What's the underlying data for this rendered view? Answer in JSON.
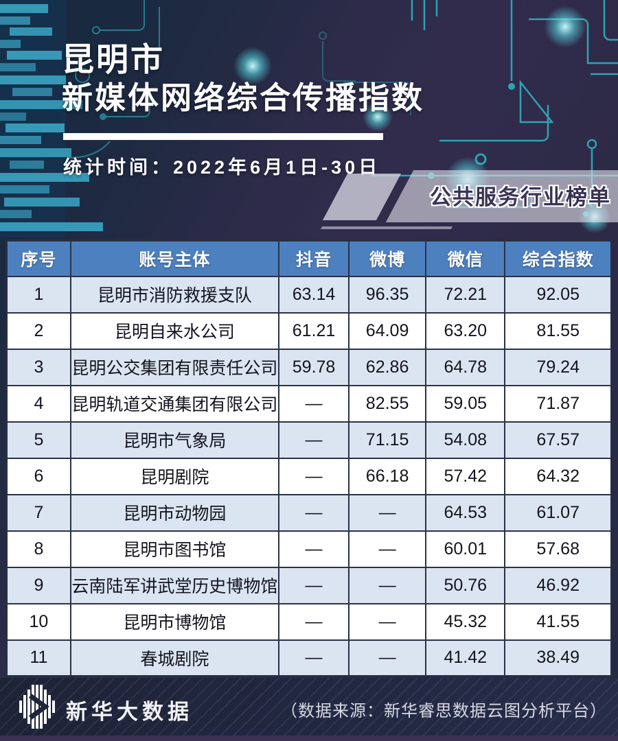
{
  "header": {
    "title_line1": "昆明市",
    "title_line2": "新媒体网络综合传播指数",
    "stats_time": "统计时间：2022年6月1日-30日",
    "badge": "公共服务行业榜单"
  },
  "table": {
    "columns": [
      "序号",
      "账号主体",
      "抖音",
      "微博",
      "微信",
      "综合指数"
    ],
    "rows": [
      [
        "1",
        "昆明市消防救援支队",
        "63.14",
        "96.35",
        "72.21",
        "92.05"
      ],
      [
        "2",
        "昆明自来水公司",
        "61.21",
        "64.09",
        "63.20",
        "81.55"
      ],
      [
        "3",
        "昆明公交集团有限责任公司",
        "59.78",
        "62.86",
        "64.78",
        "79.24"
      ],
      [
        "4",
        "昆明轨道交通集团有限公司",
        "—",
        "82.55",
        "59.05",
        "71.87"
      ],
      [
        "5",
        "昆明市气象局",
        "—",
        "71.15",
        "54.08",
        "67.57"
      ],
      [
        "6",
        "昆明剧院",
        "—",
        "66.18",
        "57.42",
        "64.32"
      ],
      [
        "7",
        "昆明市动物园",
        "—",
        "—",
        "64.53",
        "61.07"
      ],
      [
        "8",
        "昆明市图书馆",
        "—",
        "—",
        "60.01",
        "57.68"
      ],
      [
        "9",
        "云南陆军讲武堂历史博物馆",
        "—",
        "—",
        "50.76",
        "46.92"
      ],
      [
        "10",
        "昆明市博物馆",
        "—",
        "—",
        "45.32",
        "41.55"
      ],
      [
        "11",
        "春城剧院",
        "—",
        "—",
        "41.42",
        "38.49"
      ]
    ]
  },
  "footer": {
    "brand": "新华大数据",
    "source": "（数据来源：新华睿思数据云图分析平台）"
  },
  "colors": {
    "teal": "#2fc1cd",
    "header_blue": "#4d80bf",
    "row_alt": "#dbe5f1",
    "grid_border": "#2b3246",
    "badge_text": "#3a3354",
    "footer_bg": "#1f2439",
    "bottom_strip": "#3c3152"
  },
  "chart_data": {
    "type": "table",
    "title": "昆明市新媒体网络综合传播指数",
    "subtitle": "公共服务行业榜单",
    "period": "统计时间：2022年6月1日-30日",
    "columns": [
      "序号",
      "账号主体",
      "抖音",
      "微博",
      "微信",
      "综合指数"
    ],
    "rows": [
      {
        "rank": 1,
        "account": "昆明市消防救援支队",
        "douyin": 63.14,
        "weibo": 96.35,
        "wechat": 72.21,
        "index": 92.05
      },
      {
        "rank": 2,
        "account": "昆明自来水公司",
        "douyin": 61.21,
        "weibo": 64.09,
        "wechat": 63.2,
        "index": 81.55
      },
      {
        "rank": 3,
        "account": "昆明公交集团有限责任公司",
        "douyin": 59.78,
        "weibo": 62.86,
        "wechat": 64.78,
        "index": 79.24
      },
      {
        "rank": 4,
        "account": "昆明轨道交通集团有限公司",
        "douyin": null,
        "weibo": 82.55,
        "wechat": 59.05,
        "index": 71.87
      },
      {
        "rank": 5,
        "account": "昆明市气象局",
        "douyin": null,
        "weibo": 71.15,
        "wechat": 54.08,
        "index": 67.57
      },
      {
        "rank": 6,
        "account": "昆明剧院",
        "douyin": null,
        "weibo": 66.18,
        "wechat": 57.42,
        "index": 64.32
      },
      {
        "rank": 7,
        "account": "昆明市动物园",
        "douyin": null,
        "weibo": null,
        "wechat": 64.53,
        "index": 61.07
      },
      {
        "rank": 8,
        "account": "昆明市图书馆",
        "douyin": null,
        "weibo": null,
        "wechat": 60.01,
        "index": 57.68
      },
      {
        "rank": 9,
        "account": "云南陆军讲武堂历史博物馆",
        "douyin": null,
        "weibo": null,
        "wechat": 50.76,
        "index": 46.92
      },
      {
        "rank": 10,
        "account": "昆明市博物馆",
        "douyin": null,
        "weibo": null,
        "wechat": 45.32,
        "index": 41.55
      },
      {
        "rank": 11,
        "account": "春城剧院",
        "douyin": null,
        "weibo": null,
        "wechat": 41.42,
        "index": 38.49
      }
    ]
  }
}
